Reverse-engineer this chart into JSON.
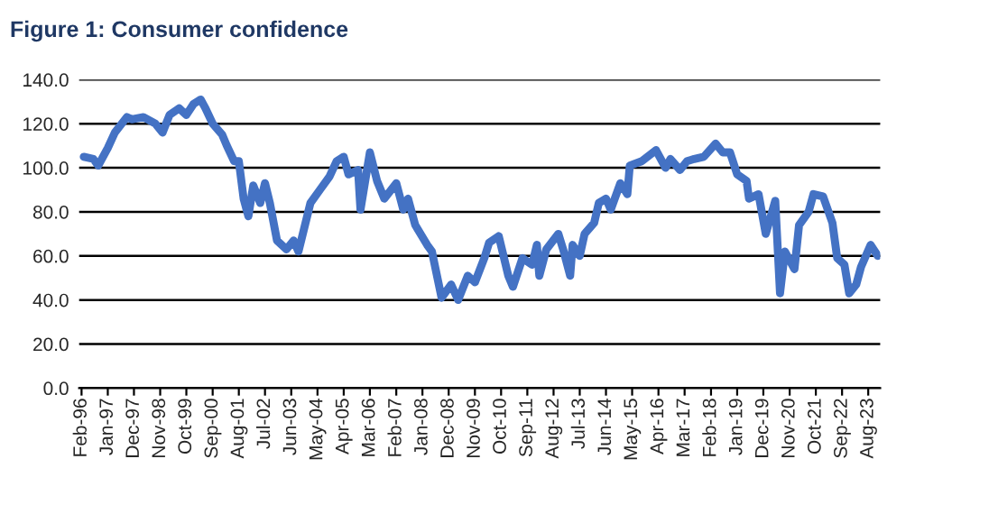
{
  "chart_data": {
    "type": "line",
    "title": "Figure 1: Consumer confidence",
    "x": [
      "1996-03",
      "1996-07",
      "1996-09",
      "1997-01",
      "1997-04",
      "1997-09",
      "1997-11",
      "1998-04",
      "1998-09",
      "1998-12",
      "1999-03",
      "1999-07",
      "1999-10",
      "2000-01",
      "2000-04",
      "2000-06",
      "2000-09",
      "2001-01",
      "2001-03",
      "2001-06",
      "2001-08",
      "2001-10",
      "2001-12",
      "2002-02",
      "2002-05",
      "2002-07",
      "2002-09",
      "2002-12",
      "2003-04",
      "2003-07",
      "2003-09",
      "2004-02",
      "2004-06",
      "2004-10",
      "2005-01",
      "2005-04",
      "2005-06",
      "2005-10",
      "2005-11",
      "2006-03",
      "2006-06",
      "2006-09",
      "2007-02",
      "2007-05",
      "2007-07",
      "2007-10",
      "2008-03",
      "2008-05",
      "2008-09",
      "2009-01",
      "2009-04",
      "2009-08",
      "2009-11",
      "2010-03",
      "2010-05",
      "2010-09",
      "2011-01",
      "2011-03",
      "2011-07",
      "2011-11",
      "2012-01",
      "2012-02",
      "2012-05",
      "2012-10",
      "2012-12",
      "2013-03",
      "2013-04",
      "2013-07",
      "2013-09",
      "2014-01",
      "2014-03",
      "2014-06",
      "2014-08",
      "2014-12",
      "2015-03",
      "2015-04",
      "2015-09",
      "2016-03",
      "2016-07",
      "2016-09",
      "2017-01",
      "2017-04",
      "2017-07",
      "2017-11",
      "2018-04",
      "2018-07",
      "2018-10",
      "2019-01",
      "2019-05",
      "2019-06",
      "2019-10",
      "2020-01",
      "2020-05",
      "2020-07",
      "2020-09",
      "2021-01",
      "2021-03",
      "2021-07",
      "2021-09",
      "2022-01",
      "2022-05",
      "2022-07",
      "2022-10",
      "2022-12",
      "2023-03",
      "2023-05",
      "2023-09",
      "2023-12"
    ],
    "series": [
      {
        "color": "#4472c4",
        "values": [
          105,
          104,
          101,
          109,
          116,
          123,
          122,
          123,
          120,
          116,
          124,
          127,
          124,
          129,
          131,
          127,
          120,
          115,
          110,
          103,
          103,
          86,
          78,
          92,
          84,
          93,
          84,
          67,
          63,
          67,
          62,
          84,
          90,
          96,
          103,
          105,
          97,
          99,
          81,
          107,
          94,
          86,
          93,
          81,
          86,
          74,
          65,
          62,
          41,
          47,
          40,
          51,
          48,
          59,
          66,
          69,
          51,
          46,
          59,
          56,
          65,
          51,
          63,
          70,
          63,
          51,
          65,
          60,
          70,
          75,
          84,
          86,
          81,
          93,
          88,
          101,
          103,
          108,
          100,
          104,
          99,
          103,
          104,
          105,
          111,
          107,
          107,
          97,
          94,
          86,
          88,
          70,
          85,
          43,
          62,
          54,
          74,
          80,
          88,
          87,
          75,
          59,
          56,
          43,
          47,
          55,
          65,
          60
        ]
      }
    ],
    "xlim": [
      "1996-01",
      "2024-01"
    ],
    "xticks": [
      {
        "value": "1996-02",
        "label": "Feb-96"
      },
      {
        "value": "1997-01",
        "label": "Jan-97"
      },
      {
        "value": "1997-12",
        "label": "Dec-97"
      },
      {
        "value": "1998-11",
        "label": "Nov-98"
      },
      {
        "value": "1999-10",
        "label": "Oct-99"
      },
      {
        "value": "2000-09",
        "label": "Sep-00"
      },
      {
        "value": "2001-08",
        "label": "Aug-01"
      },
      {
        "value": "2002-07",
        "label": "Jul-02"
      },
      {
        "value": "2003-06",
        "label": "Jun-03"
      },
      {
        "value": "2004-05",
        "label": "May-04"
      },
      {
        "value": "2005-04",
        "label": "Apr-05"
      },
      {
        "value": "2006-03",
        "label": "Mar-06"
      },
      {
        "value": "2007-02",
        "label": "Feb-07"
      },
      {
        "value": "2008-01",
        "label": "Jan-08"
      },
      {
        "value": "2008-12",
        "label": "Dec-08"
      },
      {
        "value": "2009-11",
        "label": "Nov-09"
      },
      {
        "value": "2010-10",
        "label": "Oct-10"
      },
      {
        "value": "2011-09",
        "label": "Sep-11"
      },
      {
        "value": "2012-08",
        "label": "Aug-12"
      },
      {
        "value": "2013-07",
        "label": "Jul-13"
      },
      {
        "value": "2014-06",
        "label": "Jun-14"
      },
      {
        "value": "2015-05",
        "label": "May-15"
      },
      {
        "value": "2016-04",
        "label": "Apr-16"
      },
      {
        "value": "2017-03",
        "label": "Mar-17"
      },
      {
        "value": "2018-02",
        "label": "Feb-18"
      },
      {
        "value": "2019-01",
        "label": "Jan-19"
      },
      {
        "value": "2019-12",
        "label": "Dec-19"
      },
      {
        "value": "2020-11",
        "label": "Nov-20"
      },
      {
        "value": "2021-10",
        "label": "Oct-21"
      },
      {
        "value": "2022-09",
        "label": "Sep-22"
      },
      {
        "value": "2023-08",
        "label": "Aug-23"
      }
    ],
    "ylim": [
      0,
      140
    ],
    "yticks": [
      {
        "value": 0,
        "label": "0.0"
      },
      {
        "value": 20,
        "label": "20.0"
      },
      {
        "value": 40,
        "label": "40.0"
      },
      {
        "value": 60,
        "label": "60.0"
      },
      {
        "value": 80,
        "label": "80.0"
      },
      {
        "value": 100,
        "label": "100.0"
      },
      {
        "value": 120,
        "label": "120.0"
      },
      {
        "value": 140,
        "label": "140.0"
      }
    ],
    "grid": "y",
    "marker": "none",
    "line_style": "solid",
    "legend": false
  }
}
